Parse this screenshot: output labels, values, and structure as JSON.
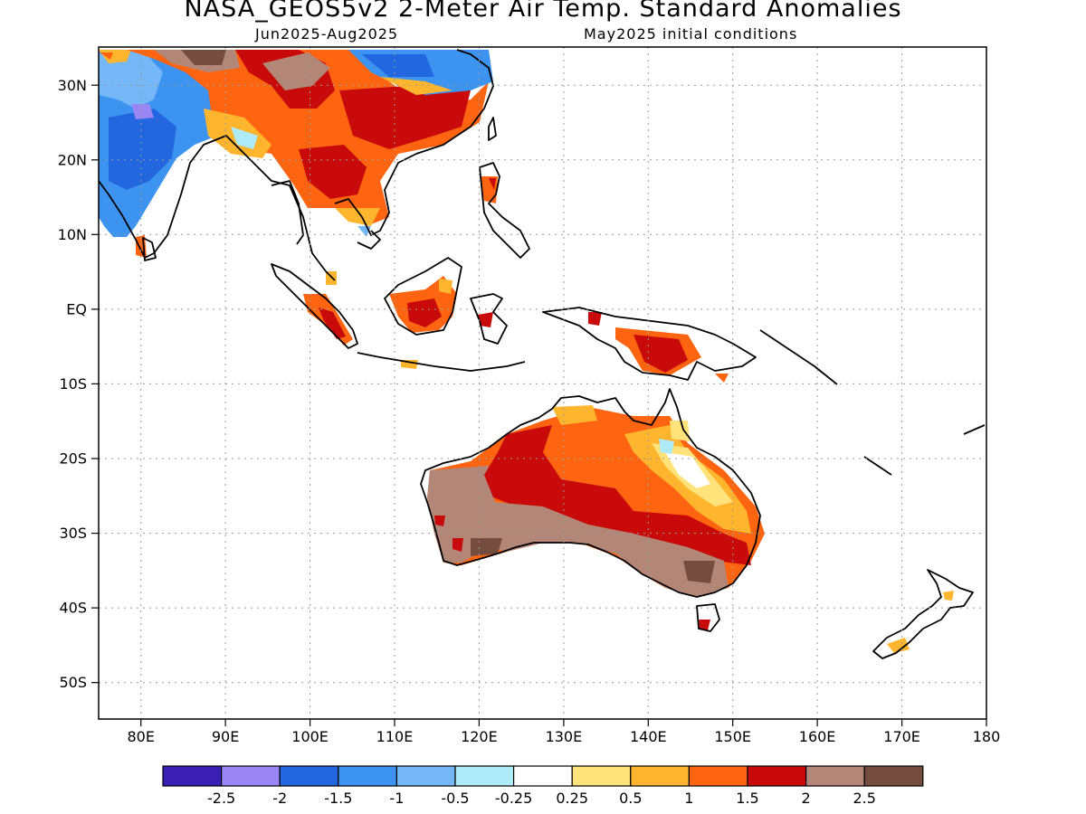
{
  "title": "NASA_GEOS5v2 2-Meter Air Temp. Standard Anomalies",
  "subtitle_left": "Jun2025-Aug2025",
  "subtitle_right": "May2025 initial conditions",
  "map": {
    "lon_range": [
      75,
      180
    ],
    "lat_range": [
      -55,
      35
    ],
    "lon_ticks": [
      "80E",
      "90E",
      "100E",
      "110E",
      "120E",
      "130E",
      "140E",
      "150E",
      "160E",
      "170E",
      "180"
    ],
    "lat_ticks": [
      "30N",
      "20N",
      "10N",
      "EQ",
      "10S",
      "20S",
      "30S",
      "40S",
      "50S"
    ],
    "gridlines": true
  },
  "legend": {
    "colors": [
      "#3a1fb4",
      "#9a85f5",
      "#2266e0",
      "#3d93f0",
      "#76b7f8",
      "#aeeaf7",
      "#ffffff",
      "#ffe27a",
      "#ffb52d",
      "#ff6410",
      "#c80a0a",
      "#b28778",
      "#744c40"
    ],
    "labels": [
      "-2.5",
      "-2",
      "-1.5",
      "-1",
      "-0.5",
      "-0.25",
      "0.25",
      "0.5",
      "1",
      "1.5",
      "2",
      "2.5"
    ]
  }
}
